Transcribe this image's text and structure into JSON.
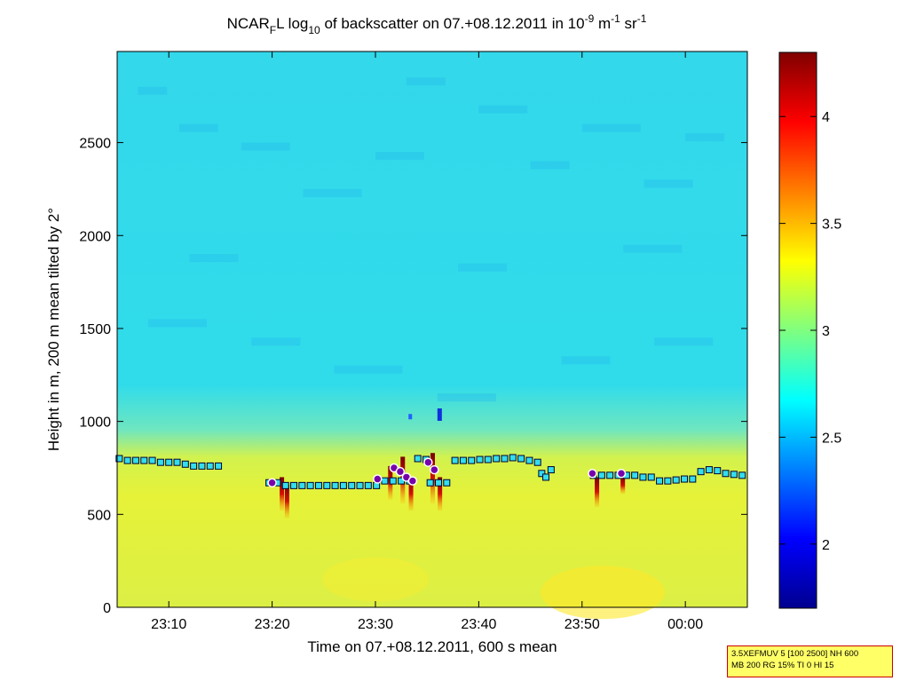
{
  "chart_data": {
    "type": "heatmap",
    "title": {
      "p1": "NCAR",
      "p1_sub": "F",
      "p2": "L log",
      "p2_sub": "10",
      "p3": " of backscatter on 07.+08.12.2011 in 10",
      "exp1": "-9",
      "p4": " m",
      "exp2": "-1",
      "p5": " sr",
      "exp3": "-1"
    },
    "xlabel": "Time on 07.+08.12.2011, 600 s mean",
    "ylabel": "Height in m, 200 m mean tilted by 2°",
    "x_range_min": [
      1385,
      1446
    ],
    "ylim": [
      0,
      2990
    ],
    "x_ticks": [
      {
        "min": 1390,
        "label": "23:10"
      },
      {
        "min": 1400,
        "label": "23:20"
      },
      {
        "min": 1410,
        "label": "23:30"
      },
      {
        "min": 1420,
        "label": "23:40"
      },
      {
        "min": 1430,
        "label": "23:50"
      },
      {
        "min": 1440,
        "label": "00:00"
      }
    ],
    "y_ticks": [
      {
        "value": 0,
        "label": "0"
      },
      {
        "value": 500,
        "label": "500"
      },
      {
        "value": 1000,
        "label": "1000"
      },
      {
        "value": 1500,
        "label": "1500"
      },
      {
        "value": 2000,
        "label": "2000"
      },
      {
        "value": 2500,
        "label": "2500"
      }
    ],
    "colorbar": {
      "range": [
        1.7,
        4.3
      ],
      "ticks": [
        {
          "value": 2,
          "label": "2"
        },
        {
          "value": 2.5,
          "label": "2.5"
        },
        {
          "value": 3,
          "label": "3"
        },
        {
          "value": 3.5,
          "label": "3.5"
        },
        {
          "value": 4,
          "label": "4"
        }
      ],
      "colormap": "jet"
    },
    "field_levels": {
      "upper_air": 2.65,
      "boundary_layer": 3.15,
      "cloud_base_peaks": 4.2
    },
    "mixing_layer_height_squares": [
      {
        "min": 1385.2,
        "h": 800
      },
      {
        "min": 1386.0,
        "h": 790
      },
      {
        "min": 1386.8,
        "h": 790
      },
      {
        "min": 1387.6,
        "h": 790
      },
      {
        "min": 1388.4,
        "h": 790
      },
      {
        "min": 1389.2,
        "h": 780
      },
      {
        "min": 1390.0,
        "h": 780
      },
      {
        "min": 1390.8,
        "h": 780
      },
      {
        "min": 1391.6,
        "h": 770
      },
      {
        "min": 1392.4,
        "h": 760
      },
      {
        "min": 1393.2,
        "h": 760
      },
      {
        "min": 1394.0,
        "h": 760
      },
      {
        "min": 1394.8,
        "h": 760
      },
      {
        "min": 1399.7,
        "h": 670
      },
      {
        "min": 1400.5,
        "h": 670
      },
      {
        "min": 1401.3,
        "h": 655
      },
      {
        "min": 1402.1,
        "h": 655
      },
      {
        "min": 1402.9,
        "h": 655
      },
      {
        "min": 1403.7,
        "h": 655
      },
      {
        "min": 1404.5,
        "h": 655
      },
      {
        "min": 1405.3,
        "h": 655
      },
      {
        "min": 1406.1,
        "h": 655
      },
      {
        "min": 1406.9,
        "h": 655
      },
      {
        "min": 1407.7,
        "h": 655
      },
      {
        "min": 1408.5,
        "h": 655
      },
      {
        "min": 1409.3,
        "h": 655
      },
      {
        "min": 1410.1,
        "h": 655
      },
      {
        "min": 1410.9,
        "h": 680
      },
      {
        "min": 1411.7,
        "h": 680
      },
      {
        "min": 1412.5,
        "h": 680
      },
      {
        "min": 1413.3,
        "h": 680
      },
      {
        "min": 1414.1,
        "h": 800
      },
      {
        "min": 1414.9,
        "h": 795
      },
      {
        "min": 1415.3,
        "h": 670
      },
      {
        "min": 1416.1,
        "h": 670
      },
      {
        "min": 1416.9,
        "h": 670
      },
      {
        "min": 1417.7,
        "h": 790
      },
      {
        "min": 1418.5,
        "h": 790
      },
      {
        "min": 1419.3,
        "h": 790
      },
      {
        "min": 1420.1,
        "h": 795
      },
      {
        "min": 1420.9,
        "h": 795
      },
      {
        "min": 1421.7,
        "h": 800
      },
      {
        "min": 1422.5,
        "h": 800
      },
      {
        "min": 1423.3,
        "h": 805
      },
      {
        "min": 1424.1,
        "h": 800
      },
      {
        "min": 1424.9,
        "h": 790
      },
      {
        "min": 1425.7,
        "h": 780
      },
      {
        "min": 1426.1,
        "h": 720
      },
      {
        "min": 1426.5,
        "h": 700
      },
      {
        "min": 1427.0,
        "h": 740
      },
      {
        "min": 1431.1,
        "h": 710
      },
      {
        "min": 1431.9,
        "h": 710
      },
      {
        "min": 1432.7,
        "h": 710
      },
      {
        "min": 1433.5,
        "h": 710
      },
      {
        "min": 1434.3,
        "h": 710
      },
      {
        "min": 1435.1,
        "h": 710
      },
      {
        "min": 1435.9,
        "h": 700
      },
      {
        "min": 1436.7,
        "h": 700
      },
      {
        "min": 1437.5,
        "h": 680
      },
      {
        "min": 1438.3,
        "h": 680
      },
      {
        "min": 1439.1,
        "h": 685
      },
      {
        "min": 1439.9,
        "h": 690
      },
      {
        "min": 1440.7,
        "h": 690
      },
      {
        "min": 1441.5,
        "h": 730
      },
      {
        "min": 1442.3,
        "h": 740
      },
      {
        "min": 1443.1,
        "h": 735
      },
      {
        "min": 1443.9,
        "h": 720
      },
      {
        "min": 1444.7,
        "h": 715
      },
      {
        "min": 1445.5,
        "h": 710
      }
    ],
    "cloud_base_circles": [
      {
        "min": 1400.0,
        "h": 670
      },
      {
        "min": 1410.2,
        "h": 690
      },
      {
        "min": 1411.8,
        "h": 750
      },
      {
        "min": 1412.4,
        "h": 730
      },
      {
        "min": 1413.0,
        "h": 700
      },
      {
        "min": 1413.6,
        "h": 680
      },
      {
        "min": 1415.1,
        "h": 780
      },
      {
        "min": 1415.7,
        "h": 740
      },
      {
        "min": 1431.0,
        "h": 720
      },
      {
        "min": 1433.8,
        "h": 720
      }
    ],
    "strong_echo_columns": [
      {
        "min": 1400.9,
        "top": 700,
        "bottom": 520
      },
      {
        "min": 1401.4,
        "top": 660,
        "bottom": 480
      },
      {
        "min": 1411.4,
        "top": 760,
        "bottom": 580
      },
      {
        "min": 1412.6,
        "top": 810,
        "bottom": 560
      },
      {
        "min": 1413.4,
        "top": 700,
        "bottom": 520
      },
      {
        "min": 1415.5,
        "top": 830,
        "bottom": 560
      },
      {
        "min": 1416.2,
        "top": 700,
        "bottom": 520
      },
      {
        "min": 1431.4,
        "top": 700,
        "bottom": 540
      },
      {
        "min": 1433.9,
        "top": 700,
        "bottom": 610
      }
    ]
  },
  "info_box": {
    "line1": "3.5XEFMUV 5 [100 2500] NH 600",
    "line2": "MB 200 RG 15% TI 0 HI 15"
  },
  "colors": {
    "mixing_layer_fill": "#33ddee",
    "marker_edge": "#000033",
    "circle_fill": "#7700aa",
    "circle_edge": "#ffffff"
  }
}
